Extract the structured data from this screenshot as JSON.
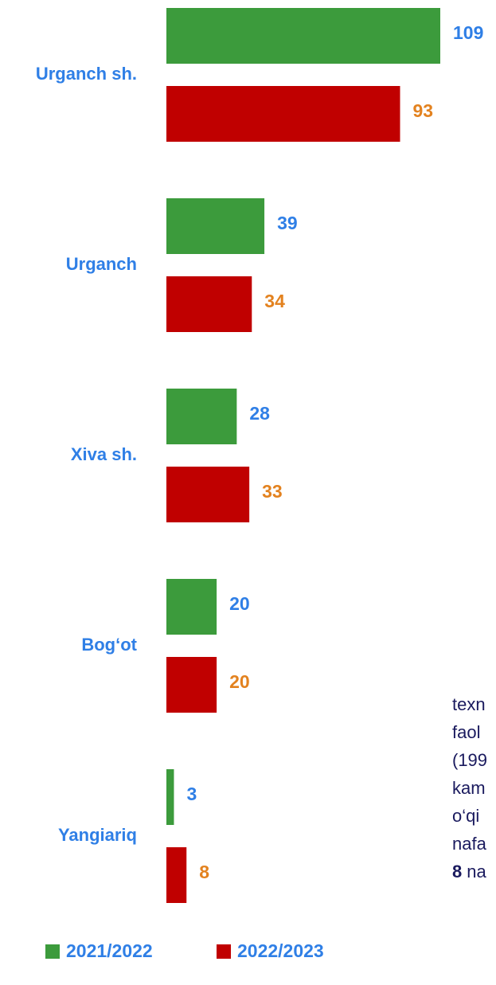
{
  "chart_data": {
    "type": "bar",
    "orientation": "horizontal",
    "categories": [
      "Urganch sh.",
      "Urganch",
      "Xiva sh.",
      "Bog‘ot",
      "Yangiariq"
    ],
    "series": [
      {
        "name": "2021/2022",
        "color": "#3c9b3c",
        "label_color": "#2f7fe6",
        "values": [
          109,
          39,
          28,
          20,
          3
        ]
      },
      {
        "name": "2022/2023",
        "color": "#c00000",
        "label_color": "#e3821f",
        "values": [
          93,
          34,
          33,
          20,
          8
        ]
      }
    ],
    "legend": "bottom"
  },
  "side_text": [
    "texn",
    "faol",
    "(199",
    "kam",
    "o‘qi",
    "nafa"
  ],
  "side_text_bold": "8",
  "side_text_end": "na"
}
